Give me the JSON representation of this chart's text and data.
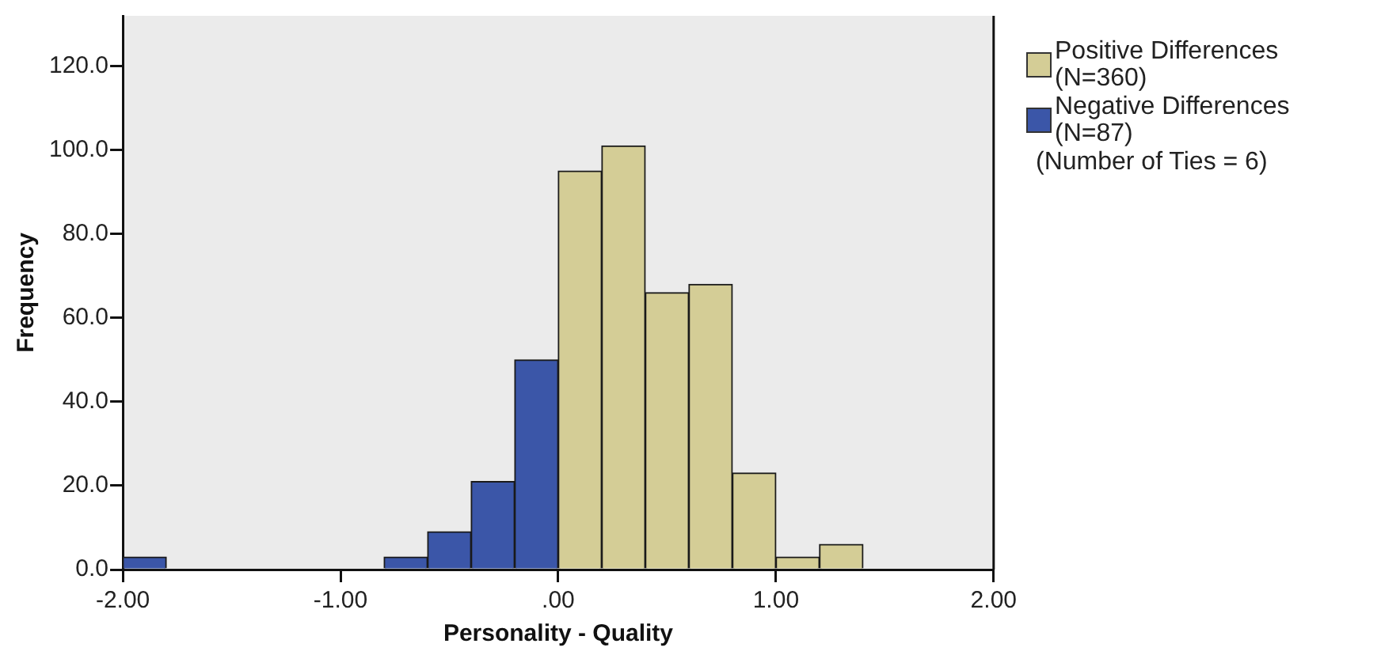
{
  "chart_data": {
    "type": "histogram",
    "xlabel": "Personality - Quality",
    "ylabel": "Frequency",
    "bins": [
      -2.0,
      -1.8,
      -1.6,
      -1.4,
      -1.2,
      -1.0,
      -0.8,
      -0.6,
      -0.4,
      -0.2,
      0.0,
      0.2,
      0.4,
      0.6,
      0.8,
      1.0,
      1.2,
      1.4
    ],
    "series": [
      {
        "name": "Positive Differences (N=360)",
        "color": "#d4cd96",
        "values": [
          null,
          null,
          null,
          null,
          null,
          null,
          null,
          null,
          null,
          null,
          95,
          101,
          66,
          68,
          23,
          3,
          6
        ]
      },
      {
        "name": "Negative Differences (N=87)",
        "color": "#3b56a8",
        "values": [
          3,
          null,
          null,
          null,
          null,
          null,
          3,
          9,
          21,
          50,
          null,
          null,
          null,
          null,
          null,
          null,
          null
        ]
      }
    ],
    "xlim": [
      -2,
      2
    ],
    "xticks": [
      {
        "value": -2,
        "label": "-2.00"
      },
      {
        "value": -1,
        "label": "-1.00"
      },
      {
        "value": 0,
        "label": ".00"
      },
      {
        "value": 1,
        "label": "1.00"
      },
      {
        "value": 2,
        "label": "2.00"
      }
    ],
    "ylim": [
      0,
      132
    ],
    "yticks": [
      {
        "value": 0,
        "label": "0.0"
      },
      {
        "value": 20,
        "label": "20.0"
      },
      {
        "value": 40,
        "label": "40.0"
      },
      {
        "value": 60,
        "label": "60.0"
      },
      {
        "value": 80,
        "label": "80.0"
      },
      {
        "value": 100,
        "label": "100.0"
      },
      {
        "value": 120,
        "label": "120.0"
      }
    ],
    "grid": false,
    "legend": "top right",
    "annotations": [
      "(Number of Ties = 6)"
    ]
  }
}
